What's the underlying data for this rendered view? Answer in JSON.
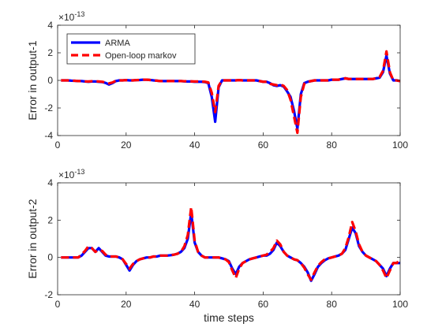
{
  "chart_data": [
    {
      "type": "line",
      "ylabel": "Error in output-1",
      "xlabel": "",
      "exponent": {
        "base": "×10",
        "power": "-13"
      },
      "xlim": [
        0,
        100
      ],
      "ylim": [
        -4,
        4
      ],
      "xticks": [
        "0",
        "20",
        "40",
        "60",
        "80",
        "100"
      ],
      "yticks": [
        "-4",
        "-2",
        "0",
        "2",
        "4"
      ],
      "grid": false,
      "legend_position": "top-left",
      "series": [
        {
          "name": "ARMA",
          "color": "#0000ff",
          "style": "solid",
          "x": [
            1,
            2,
            3,
            4,
            5,
            6,
            7,
            8,
            9,
            10,
            11,
            12,
            13,
            14,
            15,
            16,
            17,
            18,
            19,
            20,
            21,
            22,
            23,
            24,
            25,
            26,
            27,
            28,
            29,
            30,
            31,
            32,
            33,
            34,
            35,
            36,
            37,
            38,
            39,
            40,
            41,
            42,
            43,
            44,
            45,
            46,
            47,
            48,
            49,
            50,
            51,
            52,
            53,
            54,
            55,
            56,
            57,
            58,
            59,
            60,
            61,
            62,
            63,
            64,
            65,
            66,
            67,
            68,
            69,
            70,
            71,
            72,
            73,
            74,
            75,
            76,
            77,
            78,
            79,
            80,
            81,
            82,
            83,
            84,
            85,
            86,
            87,
            88,
            89,
            90,
            91,
            92,
            93,
            94,
            95,
            96,
            97,
            98,
            99,
            100
          ],
          "y": [
            0.0,
            0.0,
            0.0,
            -0.02,
            -0.03,
            -0.05,
            -0.05,
            -0.08,
            -0.1,
            -0.08,
            -0.08,
            -0.1,
            -0.12,
            -0.18,
            -0.3,
            -0.2,
            -0.05,
            0.0,
            0.0,
            0.02,
            0.0,
            0.0,
            0.02,
            0.03,
            0.05,
            0.05,
            0.03,
            0.0,
            -0.02,
            -0.05,
            -0.05,
            -0.05,
            -0.05,
            -0.05,
            -0.05,
            -0.05,
            -0.07,
            -0.08,
            -0.08,
            -0.1,
            -0.1,
            -0.1,
            -0.12,
            -0.2,
            -1.2,
            -3.0,
            -0.5,
            0.0,
            0.0,
            0.0,
            0.0,
            0.0,
            0.02,
            0.0,
            0.0,
            0.0,
            0.0,
            0.0,
            -0.05,
            -0.1,
            -0.1,
            -0.2,
            -0.35,
            -0.4,
            -0.35,
            -0.45,
            -0.8,
            -1.2,
            -2.2,
            -3.5,
            -1.0,
            -0.2,
            -0.1,
            -0.05,
            0.0,
            0.0,
            0.0,
            0.0,
            0.0,
            0.05,
            0.05,
            0.05,
            0.1,
            0.15,
            0.1,
            0.1,
            0.1,
            0.1,
            0.1,
            0.1,
            0.1,
            0.1,
            0.15,
            0.2,
            0.6,
            1.8,
            0.5,
            0.0,
            0.0,
            -0.05
          ]
        },
        {
          "name": "Open-loop markov",
          "color": "#ff0000",
          "style": "dashed",
          "x": [
            1,
            2,
            3,
            4,
            5,
            6,
            7,
            8,
            9,
            10,
            11,
            12,
            13,
            14,
            15,
            16,
            17,
            18,
            19,
            20,
            21,
            22,
            23,
            24,
            25,
            26,
            27,
            28,
            29,
            30,
            31,
            32,
            33,
            34,
            35,
            36,
            37,
            38,
            39,
            40,
            41,
            42,
            43,
            44,
            45,
            46,
            47,
            48,
            49,
            50,
            51,
            52,
            53,
            54,
            55,
            56,
            57,
            58,
            59,
            60,
            61,
            62,
            63,
            64,
            65,
            66,
            67,
            68,
            69,
            70,
            71,
            72,
            73,
            74,
            75,
            76,
            77,
            78,
            79,
            80,
            81,
            82,
            83,
            84,
            85,
            86,
            87,
            88,
            89,
            90,
            91,
            92,
            93,
            94,
            95,
            96,
            97,
            98,
            99,
            100
          ],
          "y": [
            0.0,
            0.0,
            0.0,
            -0.02,
            -0.03,
            -0.05,
            -0.05,
            -0.07,
            -0.08,
            -0.06,
            -0.06,
            -0.08,
            -0.1,
            -0.15,
            -0.22,
            -0.15,
            -0.03,
            0.0,
            0.0,
            0.02,
            0.0,
            0.0,
            0.02,
            0.03,
            0.05,
            0.05,
            0.03,
            0.0,
            -0.02,
            -0.05,
            -0.05,
            -0.05,
            -0.05,
            -0.05,
            -0.05,
            -0.05,
            -0.06,
            -0.07,
            -0.07,
            -0.08,
            -0.08,
            -0.08,
            -0.1,
            -0.15,
            -0.9,
            -2.3,
            -0.4,
            0.0,
            0.0,
            0.0,
            0.0,
            0.0,
            0.02,
            0.0,
            0.0,
            0.0,
            0.0,
            0.0,
            -0.05,
            -0.1,
            -0.1,
            -0.25,
            -0.3,
            -0.35,
            -0.3,
            -0.4,
            -0.7,
            -1.4,
            -2.6,
            -3.8,
            -1.2,
            -0.25,
            -0.1,
            -0.05,
            0.0,
            0.0,
            0.0,
            0.0,
            0.0,
            0.05,
            0.05,
            0.05,
            0.1,
            0.15,
            0.1,
            0.1,
            0.1,
            0.1,
            0.1,
            0.1,
            0.1,
            0.1,
            0.15,
            0.25,
            0.7,
            2.1,
            0.6,
            0.0,
            0.0,
            -0.05
          ]
        }
      ]
    },
    {
      "type": "line",
      "ylabel": "Error in output-2",
      "xlabel": "time steps",
      "exponent": {
        "base": "×10",
        "power": "-13"
      },
      "xlim": [
        0,
        100
      ],
      "ylim": [
        -2,
        4
      ],
      "xticks": [
        "0",
        "20",
        "40",
        "60",
        "80",
        "100"
      ],
      "yticks": [
        "-2",
        "0",
        "2",
        "4"
      ],
      "grid": false,
      "series": [
        {
          "name": "ARMA",
          "color": "#0000ff",
          "style": "solid",
          "x": [
            1,
            2,
            3,
            4,
            5,
            6,
            7,
            8,
            9,
            10,
            11,
            12,
            13,
            14,
            15,
            16,
            17,
            18,
            19,
            20,
            21,
            22,
            23,
            24,
            25,
            26,
            27,
            28,
            29,
            30,
            31,
            32,
            33,
            34,
            35,
            36,
            37,
            38,
            39,
            40,
            41,
            42,
            43,
            44,
            45,
            46,
            47,
            48,
            49,
            50,
            51,
            52,
            53,
            54,
            55,
            56,
            57,
            58,
            59,
            60,
            61,
            62,
            63,
            64,
            65,
            66,
            67,
            68,
            69,
            70,
            71,
            72,
            73,
            74,
            75,
            76,
            77,
            78,
            79,
            80,
            81,
            82,
            83,
            84,
            85,
            86,
            87,
            88,
            89,
            90,
            91,
            92,
            93,
            94,
            95,
            96,
            97,
            98,
            99,
            100
          ],
          "y": [
            0.0,
            0.0,
            0.0,
            0.0,
            0.0,
            0.0,
            0.1,
            0.3,
            0.5,
            0.5,
            0.3,
            0.5,
            0.3,
            0.1,
            0.05,
            0.05,
            0.05,
            0.0,
            -0.1,
            -0.4,
            -0.7,
            -0.4,
            -0.2,
            -0.1,
            -0.05,
            0.0,
            0.0,
            0.05,
            0.05,
            0.1,
            0.1,
            0.1,
            0.12,
            0.15,
            0.2,
            0.3,
            0.5,
            1.0,
            2.4,
            0.8,
            0.3,
            0.1,
            0.0,
            0.0,
            0.0,
            0.0,
            0.0,
            -0.05,
            -0.1,
            -0.2,
            -0.6,
            -0.9,
            -0.5,
            -0.3,
            -0.2,
            -0.1,
            -0.05,
            0.0,
            0.05,
            0.1,
            0.1,
            0.2,
            0.4,
            0.8,
            0.6,
            0.3,
            0.1,
            0.0,
            -0.1,
            -0.15,
            -0.3,
            -0.5,
            -0.8,
            -1.25,
            -0.9,
            -0.5,
            -0.3,
            -0.15,
            -0.05,
            0.0,
            0.05,
            0.1,
            0.2,
            0.4,
            1.0,
            1.6,
            1.3,
            0.6,
            0.3,
            0.1,
            0.0,
            -0.1,
            -0.2,
            -0.4,
            -0.6,
            -1.0,
            -0.6,
            -0.3,
            -0.3,
            -0.3
          ]
        },
        {
          "name": "Open-loop markov",
          "color": "#ff0000",
          "style": "dashed",
          "x": [
            1,
            2,
            3,
            4,
            5,
            6,
            7,
            8,
            9,
            10,
            11,
            12,
            13,
            14,
            15,
            16,
            17,
            18,
            19,
            20,
            21,
            22,
            23,
            24,
            25,
            26,
            27,
            28,
            29,
            30,
            31,
            32,
            33,
            34,
            35,
            36,
            37,
            38,
            39,
            40,
            41,
            42,
            43,
            44,
            45,
            46,
            47,
            48,
            49,
            50,
            51,
            52,
            53,
            54,
            55,
            56,
            57,
            58,
            59,
            60,
            61,
            62,
            63,
            64,
            65,
            66,
            67,
            68,
            69,
            70,
            71,
            72,
            73,
            74,
            75,
            76,
            77,
            78,
            79,
            80,
            81,
            82,
            83,
            84,
            85,
            86,
            87,
            88,
            89,
            90,
            91,
            92,
            93,
            94,
            95,
            96,
            97,
            98,
            99,
            100
          ],
          "y": [
            0.0,
            0.0,
            0.0,
            0.0,
            0.0,
            0.0,
            0.15,
            0.35,
            0.6,
            0.5,
            0.3,
            0.4,
            0.35,
            0.15,
            0.05,
            0.05,
            0.05,
            0.0,
            -0.1,
            -0.35,
            -0.6,
            -0.35,
            -0.2,
            -0.1,
            -0.05,
            0.0,
            0.0,
            0.05,
            0.05,
            0.1,
            0.1,
            0.1,
            0.12,
            0.15,
            0.2,
            0.3,
            0.6,
            1.2,
            2.7,
            0.9,
            0.3,
            0.1,
            0.0,
            0.0,
            0.0,
            0.0,
            0.0,
            -0.05,
            -0.1,
            -0.25,
            -0.7,
            -1.1,
            -0.6,
            -0.3,
            -0.2,
            -0.1,
            -0.05,
            0.0,
            0.05,
            0.1,
            0.15,
            0.3,
            0.5,
            0.9,
            0.7,
            0.3,
            0.1,
            0.0,
            -0.1,
            -0.15,
            -0.3,
            -0.55,
            -0.9,
            -1.2,
            -0.8,
            -0.45,
            -0.25,
            -0.1,
            -0.05,
            0.0,
            0.05,
            0.1,
            0.2,
            0.5,
            1.1,
            1.9,
            1.4,
            0.7,
            0.3,
            0.1,
            0.0,
            -0.1,
            -0.2,
            -0.4,
            -0.7,
            -1.1,
            -0.7,
            -0.3,
            -0.3,
            -0.1
          ]
        }
      ]
    }
  ]
}
